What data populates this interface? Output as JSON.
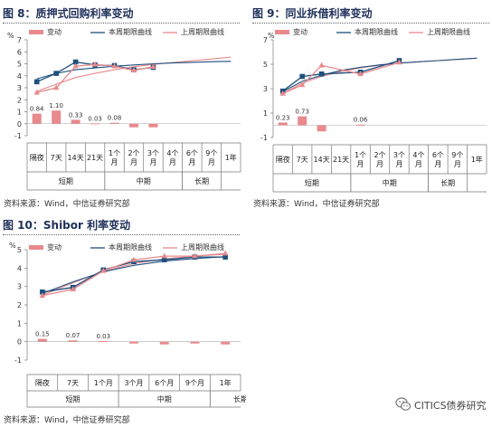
{
  "panels": [
    {
      "fig_title": "图 8：质押式回购利率变动",
      "source": "资料来源：Wind，中信证券研究部",
      "unit": "%",
      "legend": {
        "change": "变动",
        "this_week": "本周期限曲线",
        "last_week": "上周期限曲线"
      },
      "groups": [
        {
          "label": "短期",
          "from": 0,
          "to": 3
        },
        {
          "label": "中期",
          "from": 4,
          "to": 7
        },
        {
          "label": "长期",
          "from": 8,
          "to": 9
        }
      ]
    },
    {
      "fig_title": "图 9：同业拆借利率变动",
      "source": "资料来源：Wind，中信证券研究部",
      "unit": "%",
      "legend": {
        "change": "变动",
        "this_week": "本周期限曲线",
        "last_week": "上周期限曲线"
      },
      "groups": [
        {
          "label": "短期",
          "from": 0,
          "to": 3
        },
        {
          "label": "中期",
          "from": 4,
          "to": 7
        },
        {
          "label": "长期",
          "from": 8,
          "to": 9
        }
      ]
    },
    {
      "fig_title": "图 10：Shibor 利率变动",
      "source": "资料来源：Wind，中信证券研究部",
      "unit": "%",
      "legend": {
        "change": "变动",
        "this_week": "本周期限曲线",
        "last_week": "上周期限曲线"
      },
      "groups": [
        {
          "label": "短期",
          "from": 0,
          "to": 2
        },
        {
          "label": "中期",
          "from": 3,
          "to": 5
        },
        {
          "label": "长期",
          "from": 6,
          "to": 7
        }
      ]
    }
  ],
  "watermark": {
    "text": "CITICS债券研究"
  },
  "colors": {
    "change_bar": "#e8898c",
    "this_week": "#1e4f7e",
    "last_week": "#e8898c",
    "markers": "#e8898c",
    "title": "#1f2f5a"
  },
  "chart_data": [
    {
      "type": "bar+line",
      "title": "质押式回购利率变动",
      "ylabel": "%",
      "ylim": [
        -1,
        7
      ],
      "yticks": [
        -1,
        0,
        1,
        2,
        3,
        4,
        5,
        6,
        7
      ],
      "categories": [
        "隔夜",
        "7天",
        "14天",
        "21天",
        "1个月",
        "2个月",
        "3个月",
        "4个月",
        "6个月",
        "9个月",
        "1年"
      ],
      "category_rows": [
        [
          "隔夜"
        ],
        [
          "7天"
        ],
        [
          "14天"
        ],
        [
          "21天"
        ],
        [
          "1个",
          "月"
        ],
        [
          "2个",
          "月"
        ],
        [
          "3个",
          "月"
        ],
        [
          "4个",
          "月"
        ],
        [
          "6个",
          "月"
        ],
        [
          "9个",
          "月"
        ],
        [
          "1年"
        ]
      ],
      "series": [
        {
          "name": "变动",
          "kind": "bar",
          "values": [
            0.84,
            1.1,
            0.33,
            0.03,
            0.08,
            -0.3,
            -0.3,
            null,
            null,
            null,
            null
          ]
        },
        {
          "name": "本周期限曲线",
          "kind": "line",
          "values": [
            3.5,
            4.2,
            5.15,
            4.9,
            4.85,
            4.5,
            4.7,
            null,
            null,
            null,
            null
          ]
        },
        {
          "name": "上周期限曲线",
          "kind": "line",
          "values": [
            2.6,
            3.0,
            4.8,
            4.95,
            4.8,
            4.45,
            4.75,
            null,
            null,
            null,
            null
          ]
        }
      ],
      "trend_this_week": [
        3.75,
        4.2,
        4.5,
        4.65,
        4.8,
        4.9,
        5.0,
        5.07,
        5.12,
        5.17,
        5.2
      ],
      "trend_last_week": [
        2.7,
        3.3,
        3.85,
        4.2,
        4.5,
        4.75,
        4.95,
        5.1,
        5.25,
        5.4,
        5.55
      ],
      "data_labels": [
        "0.84",
        "1.10",
        "0.33",
        "0.03",
        "0.08"
      ],
      "grid": false,
      "legend_position": "top"
    },
    {
      "type": "bar+line",
      "title": "同业拆借利率变动",
      "ylabel": "%",
      "ylim": [
        -1,
        7
      ],
      "yticks": [
        -1,
        1,
        3,
        5,
        7
      ],
      "categories": [
        "隔夜",
        "7天",
        "14天",
        "21天",
        "1个月",
        "2个月",
        "3个月",
        "4个月",
        "6个月",
        "9个月",
        "1年"
      ],
      "category_rows": [
        [
          "隔夜"
        ],
        [
          "7天"
        ],
        [
          "14天"
        ],
        [
          "21天"
        ],
        [
          "1个",
          "月"
        ],
        [
          "2个",
          "月"
        ],
        [
          "3个",
          "月"
        ],
        [
          "4个",
          "月"
        ],
        [
          "6个",
          "月"
        ],
        [
          "9个",
          "月"
        ],
        [
          "1年"
        ]
      ],
      "series": [
        {
          "name": "变动",
          "kind": "bar",
          "values": [
            0.23,
            0.73,
            -0.5,
            null,
            0.06,
            null,
            null,
            null,
            null,
            null,
            null
          ]
        },
        {
          "name": "本周期限曲线",
          "kind": "line",
          "values": [
            2.8,
            4.0,
            4.2,
            null,
            4.35,
            null,
            5.3,
            null,
            null,
            null,
            null
          ]
        },
        {
          "name": "上周期限曲线",
          "kind": "line",
          "values": [
            2.6,
            3.3,
            4.9,
            null,
            4.2,
            null,
            5.15,
            null,
            null,
            null,
            null
          ]
        }
      ],
      "trend_this_week": [
        2.75,
        3.6,
        4.1,
        4.5,
        4.75,
        4.95,
        5.1,
        5.2,
        5.3,
        5.4,
        5.5
      ],
      "trend_last_week": [
        2.6,
        3.45,
        4.0,
        4.4,
        4.7,
        4.92,
        5.08,
        5.2,
        5.3,
        5.4,
        5.5
      ],
      "data_labels": [
        "0.23",
        "0.73",
        "",
        "",
        "0.06"
      ],
      "grid": false,
      "legend_position": "top"
    },
    {
      "type": "bar+line",
      "title": "Shibor 利率变动",
      "ylabel": "%",
      "ylim": [
        -1,
        5
      ],
      "yticks": [
        -1,
        0,
        1,
        2,
        3,
        4,
        5
      ],
      "categories": [
        "隔夜",
        "7天",
        "1个月",
        "3个月",
        "6个月",
        "9个月",
        "1年"
      ],
      "category_rows": [
        [
          "隔夜"
        ],
        [
          "7天"
        ],
        [
          "1个月"
        ],
        [
          "3个月"
        ],
        [
          "6个月"
        ],
        [
          "9个月"
        ],
        [
          "1年"
        ]
      ],
      "series": [
        {
          "name": "变动",
          "kind": "bar",
          "values": [
            0.15,
            0.07,
            0.03,
            -0.1,
            -0.15,
            -0.1,
            -0.15
          ]
        },
        {
          "name": "本周期限曲线",
          "kind": "line",
          "values": [
            2.7,
            2.95,
            3.9,
            4.35,
            4.45,
            4.6,
            4.6
          ]
        },
        {
          "name": "上周期限曲线",
          "kind": "line",
          "values": [
            2.5,
            2.85,
            3.85,
            4.45,
            4.65,
            4.65,
            4.8
          ]
        }
      ],
      "trend_this_week": [
        2.62,
        3.25,
        3.8,
        4.15,
        4.38,
        4.52,
        4.62
      ],
      "trend_last_week": [
        2.52,
        3.2,
        3.82,
        4.25,
        4.5,
        4.65,
        4.75
      ],
      "data_labels": [
        "0.15",
        "0.07",
        "0.03",
        "",
        "",
        "",
        ""
      ],
      "grid": false,
      "legend_position": "top"
    }
  ]
}
